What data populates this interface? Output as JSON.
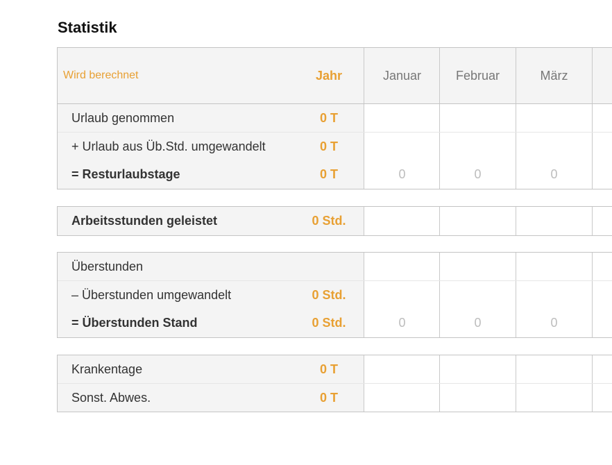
{
  "title": "Statistik",
  "header": {
    "label": "Wird berechnet",
    "year": "Jahr",
    "months": [
      "Januar",
      "Februar",
      "März"
    ]
  },
  "groups": [
    {
      "rows": [
        {
          "label": "Urlaub genommen",
          "year": "0 T"
        },
        {
          "label": "+ Urlaub aus Üb.Std. umgewandelt",
          "year": "0 T"
        },
        {
          "label": "= Resturlaubstage",
          "year": "0 T",
          "bold": true,
          "months": [
            0,
            0,
            0
          ]
        }
      ]
    },
    {
      "rows": [
        {
          "label": "Arbeitsstunden geleistet",
          "year": "0 Std.",
          "bold": true
        }
      ]
    },
    {
      "rows": [
        {
          "label": "Überstunden"
        },
        {
          "label": "– Überstunden umgewandelt",
          "year": "0 Std."
        },
        {
          "label": "= Überstunden Stand",
          "year": "0 Std.",
          "bold": true,
          "months": [
            0,
            0,
            0
          ]
        }
      ]
    },
    {
      "rows": [
        {
          "label": "Krankentage",
          "year": "0 T"
        },
        {
          "label": "Sonst. Abwes.",
          "year": "0 T"
        }
      ]
    }
  ]
}
